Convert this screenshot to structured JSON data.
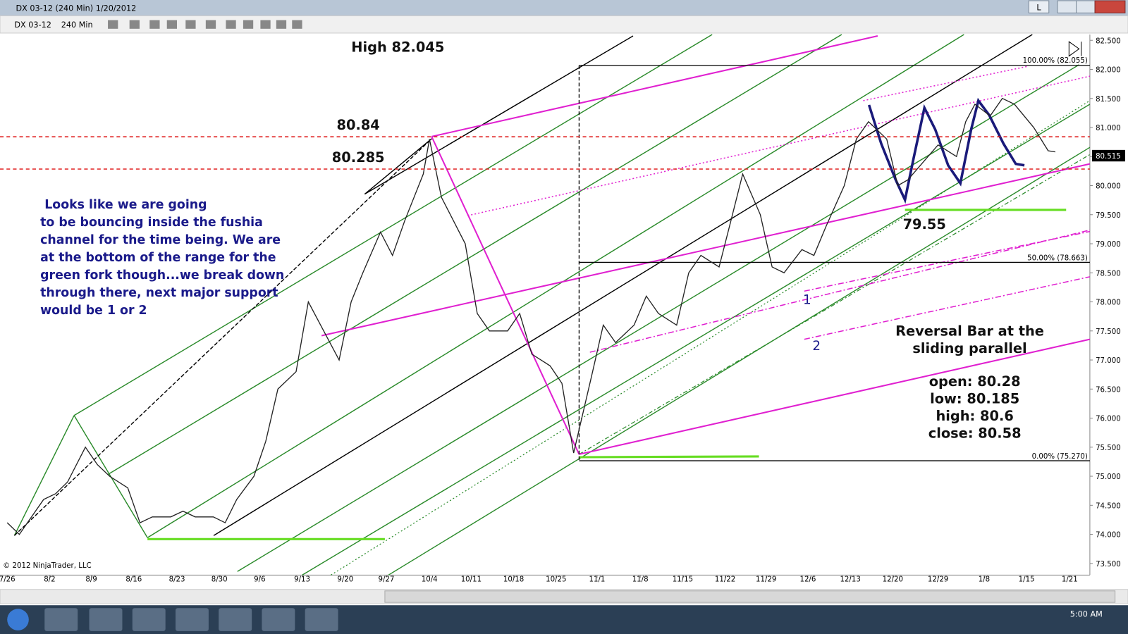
{
  "window": {
    "title": "DX 03-12 (240 Min)  1/20/2012",
    "button": "L"
  },
  "toolbar": {
    "instrument": "DX 03-12",
    "interval": "240 Min"
  },
  "chart": {
    "type": "price-line",
    "x": [
      "7/26",
      "7/28",
      "8/1",
      "8/3",
      "8/5",
      "8/8",
      "8/10",
      "8/12",
      "8/15",
      "8/17",
      "8/19",
      "8/22",
      "8/24",
      "8/26",
      "8/29",
      "8/31",
      "9/2",
      "9/5",
      "9/7",
      "9/9",
      "9/12",
      "9/14",
      "9/16",
      "9/19",
      "9/21",
      "9/23",
      "9/26",
      "9/28",
      "9/30",
      "10/3",
      "10/4",
      "10/6",
      "10/10",
      "10/12",
      "10/14",
      "10/17",
      "10/19",
      "10/21",
      "10/24",
      "10/26",
      "10/28",
      "10/31",
      "11/2",
      "11/4",
      "11/7",
      "11/9",
      "11/11",
      "11/14",
      "11/16",
      "11/18",
      "11/21",
      "11/23",
      "11/25",
      "11/28",
      "11/30",
      "12/2",
      "12/5",
      "12/7",
      "12/9",
      "12/12",
      "12/14",
      "12/16",
      "12/19",
      "12/21",
      "12/23",
      "12/27",
      "12/29",
      "1/2",
      "1/4",
      "1/6",
      "1/9",
      "1/11",
      "1/13",
      "1/16",
      "1/18",
      "1/19"
    ],
    "closes": [
      74.2,
      74.0,
      74.6,
      74.7,
      74.9,
      75.5,
      75.2,
      75.0,
      74.8,
      74.2,
      74.3,
      74.3,
      74.4,
      74.3,
      74.3,
      74.2,
      74.6,
      75.0,
      75.6,
      76.5,
      76.8,
      78.0,
      77.6,
      77.0,
      78.0,
      78.5,
      79.2,
      78.8,
      79.4,
      80.2,
      80.8,
      79.8,
      79.0,
      77.8,
      77.5,
      77.5,
      77.8,
      77.1,
      76.9,
      76.6,
      75.4,
      76.7,
      77.6,
      77.3,
      77.6,
      78.1,
      77.8,
      77.6,
      78.5,
      78.8,
      78.6,
      79.4,
      80.2,
      79.5,
      78.6,
      78.5,
      78.9,
      78.8,
      79.3,
      80.0,
      80.8,
      81.1,
      80.8,
      80.0,
      80.1,
      80.5,
      80.7,
      80.5,
      81.1,
      81.4,
      81.2,
      81.5,
      81.4,
      81.0,
      80.6,
      80.58
    ],
    "ylim": [
      73.3,
      82.6
    ],
    "yticks": [
      {
        "value": 82.5,
        "label": "82.500"
      },
      {
        "value": 82,
        "label": "82.000"
      },
      {
        "value": 81.5,
        "label": "81.500"
      },
      {
        "value": 81,
        "label": "81.000"
      },
      {
        "value": 80.5,
        "label": "80.500"
      },
      {
        "value": 80,
        "label": "80.000"
      },
      {
        "value": 79.5,
        "label": "79.500"
      },
      {
        "value": 79,
        "label": "79.000"
      },
      {
        "value": 78.5,
        "label": "78.500"
      },
      {
        "value": 78,
        "label": "78.000"
      },
      {
        "value": 77.5,
        "label": "77.500"
      },
      {
        "value": 77,
        "label": "77.000"
      },
      {
        "value": 76.5,
        "label": "76.500"
      },
      {
        "value": 76,
        "label": "76.000"
      },
      {
        "value": 75.5,
        "label": "75.500"
      },
      {
        "value": 75,
        "label": "75.000"
      },
      {
        "value": 74.5,
        "label": "74.500"
      },
      {
        "value": 74,
        "label": "74.000"
      },
      {
        "value": 73.5,
        "label": "73.500"
      }
    ],
    "xticks": [
      "7/26",
      "8/2",
      "8/9",
      "8/16",
      "8/23",
      "8/30",
      "9/6",
      "9/13",
      "9/20",
      "9/27",
      "10/4",
      "10/11",
      "10/18",
      "10/25",
      "11/1",
      "11/8",
      "11/15",
      "11/22",
      "11/29",
      "12/6",
      "12/13",
      "12/20",
      "12/29",
      "1/8",
      "1/15",
      "1/21"
    ],
    "levels": [
      80.84,
      80.285
    ],
    "last_price": 80.515,
    "low_level": 79.55,
    "high_label": "High 82.045",
    "fib_labels": [
      "100.00% (82.055)",
      "50.00% (78.663)",
      "0.00% (75.270)"
    ],
    "notes": [
      "Looks like we are going",
      "to be bouncing inside the fushia",
      "channel for the time being.  We are",
      "at the bottom of the range for the",
      "green fork though...we break down",
      "through there, next major support",
      "would be 1 or 2"
    ],
    "markers": [
      "1",
      "2"
    ],
    "reversal_title": [
      "Reversal Bar at the",
      "sliding parallel"
    ],
    "reversal_values": [
      "open:  80.28",
      "low:  80.185",
      "high:  80.6",
      "close:  80.58"
    ],
    "copyright": "© 2012 NinjaTrader, LLC"
  },
  "taskbar": {
    "time": "5:00 AM"
  }
}
